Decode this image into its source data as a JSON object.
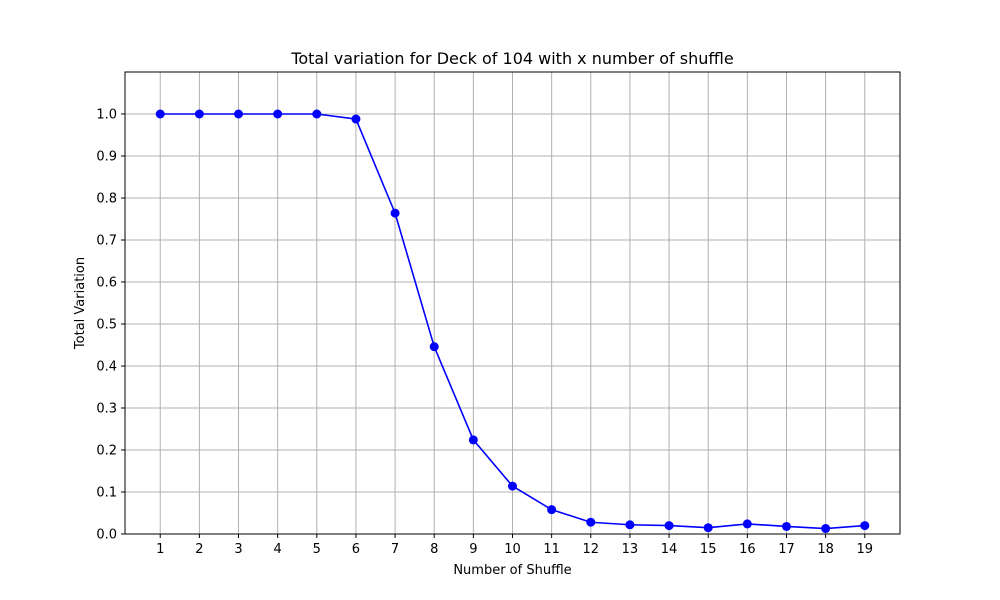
{
  "chart_data": {
    "type": "line",
    "title": "Total variation for Deck of 104 with x number of shuffle",
    "xlabel": "Number of Shuffle",
    "ylabel": "Total Variation",
    "x": [
      1,
      2,
      3,
      4,
      5,
      6,
      7,
      8,
      9,
      10,
      11,
      12,
      13,
      14,
      15,
      16,
      17,
      18,
      19
    ],
    "series": [
      {
        "values": [
          1.0,
          1.0,
          1.0,
          1.0,
          1.0,
          0.988,
          0.764,
          0.446,
          0.224,
          0.114,
          0.058,
          0.028,
          0.022,
          0.02,
          0.015,
          0.024,
          0.018,
          0.013,
          0.02
        ],
        "color": "#0000ff",
        "marker": "circle"
      }
    ],
    "xlim": [
      0.1,
      19.9
    ],
    "ylim": [
      0,
      1.1
    ],
    "x_ticks": [
      1,
      2,
      3,
      4,
      5,
      6,
      7,
      8,
      9,
      10,
      11,
      12,
      13,
      14,
      15,
      16,
      17,
      18,
      19
    ],
    "y_ticks": [
      0.0,
      0.1,
      0.2,
      0.3,
      0.4,
      0.5,
      0.6,
      0.7,
      0.8,
      0.9,
      1.0
    ],
    "grid": true,
    "grid_color": "#b0b0b0"
  }
}
